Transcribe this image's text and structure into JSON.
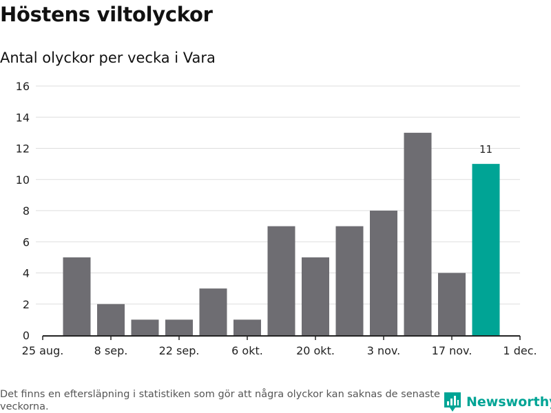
{
  "header": {
    "title": "Höstens viltolyckor",
    "subtitle": "Antal olyckor per vecka i Vara"
  },
  "footer": {
    "note": "Det finns en eftersläpning i statistiken som gör att några olyckor kan saknas de senaste veckorna.",
    "brand": "Newsworthy",
    "brand_icon": "newsworthy-logo-icon"
  },
  "colors": {
    "bar": "#6e6d72",
    "highlight": "#00a495",
    "grid": "#dddddd",
    "axis": "#222222",
    "brand": "#00a495"
  },
  "chart_data": {
    "type": "bar",
    "title": "Antal olyckor per vecka i Vara",
    "xlabel": "",
    "ylabel": "",
    "ylim": [
      0,
      16
    ],
    "y_ticks": [
      0,
      2,
      4,
      6,
      8,
      10,
      12,
      14,
      16
    ],
    "x_ticks": [
      "25 aug.",
      "8 sep.",
      "22 sep.",
      "6 okt.",
      "20 okt.",
      "3 nov.",
      "17 nov.",
      "1 dec."
    ],
    "grid": true,
    "values": [
      5,
      2,
      1,
      1,
      3,
      1,
      7,
      5,
      7,
      8,
      13,
      4,
      11
    ],
    "highlight_index": 12,
    "data_labels": [
      {
        "index": 12,
        "text": "11"
      }
    ]
  }
}
